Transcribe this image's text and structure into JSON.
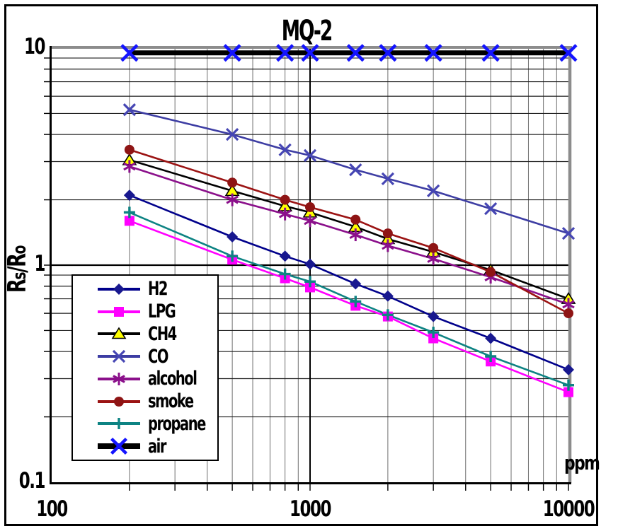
{
  "chart_data": {
    "type": "line",
    "title": "MQ-2",
    "ylabel": "Rs/Ro",
    "ylabel_parts": [
      "R",
      "s",
      "/R",
      "o"
    ],
    "x_unit": "ppm",
    "x_scale": "log",
    "y_scale": "log",
    "xlim": [
      100,
      10000
    ],
    "ylim": [
      0.1,
      10
    ],
    "grid": "log-minor-both",
    "legend_position": "inside-bottom-left",
    "x_ticks": [
      {
        "value": 100,
        "label": "100"
      },
      {
        "value": 1000,
        "label": "1000"
      },
      {
        "value": 10000,
        "label": "10000"
      }
    ],
    "y_ticks": [
      {
        "value": 10,
        "label": "10"
      },
      {
        "value": 1,
        "label": "1"
      },
      {
        "value": 0.1,
        "label": "0.1"
      }
    ],
    "x": [
      200,
      500,
      800,
      1000,
      1500,
      2000,
      3000,
      5000,
      10000
    ],
    "series": [
      {
        "name": "H2",
        "color": "#00008b",
        "marker": "diamond",
        "marker_color": "#18188f",
        "line_width": 2.6,
        "values": [
          2.1,
          1.35,
          1.1,
          1.01,
          0.82,
          0.72,
          0.58,
          0.46,
          0.33
        ]
      },
      {
        "name": "LPG",
        "color": "#ff00ff",
        "marker": "square",
        "marker_color": "#ff00ff",
        "line_width": 2.6,
        "values": [
          1.6,
          1.06,
          0.87,
          0.79,
          0.65,
          0.58,
          0.46,
          0.36,
          0.26
        ]
      },
      {
        "name": "CH4",
        "color": "#000000",
        "marker": "triangle",
        "marker_color": "#ffff00",
        "line_width": 2.6,
        "values": [
          3.05,
          2.2,
          1.87,
          1.75,
          1.5,
          1.32,
          1.15,
          0.95,
          0.7
        ]
      },
      {
        "name": "CO",
        "color": "#3d3da3",
        "marker": "x",
        "marker_color": "#4646b4",
        "line_width": 2.6,
        "values": [
          5.2,
          4.0,
          3.4,
          3.2,
          2.75,
          2.5,
          2.2,
          1.82,
          1.4
        ]
      },
      {
        "name": "alcohol",
        "color": "#8b108b",
        "marker": "asterisk",
        "marker_color": "#8b108b",
        "line_width": 2.6,
        "values": [
          2.85,
          2.0,
          1.72,
          1.6,
          1.38,
          1.23,
          1.07,
          0.88,
          0.66
        ]
      },
      {
        "name": "smoke",
        "color": "#9b1313",
        "marker": "circle",
        "marker_color": "#8e1414",
        "line_width": 2.6,
        "values": [
          3.4,
          2.4,
          2.0,
          1.85,
          1.62,
          1.4,
          1.2,
          0.93,
          0.6
        ]
      },
      {
        "name": "propane",
        "color": "#0d8383",
        "marker": "plus",
        "marker_color": "#0d8383",
        "line_width": 2.6,
        "values": [
          1.75,
          1.1,
          0.91,
          0.84,
          0.68,
          0.59,
          0.49,
          0.38,
          0.28
        ]
      },
      {
        "name": "air",
        "color": "#000000",
        "marker": "x-bold",
        "marker_color": "#1414ff",
        "line_width": 7,
        "values": [
          9.5,
          9.5,
          9.5,
          9.5,
          9.5,
          9.5,
          9.5,
          9.5,
          9.5
        ]
      }
    ]
  }
}
